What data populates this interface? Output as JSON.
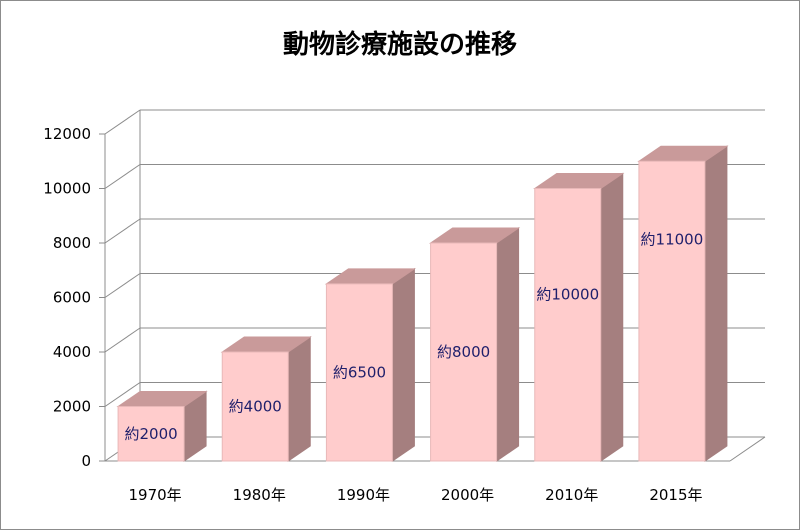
{
  "chart_data": {
    "type": "bar",
    "title": "動物診療施設の推移",
    "categories": [
      "1970年",
      "1980年",
      "1990年",
      "2000年",
      "2010年",
      "2015年"
    ],
    "values": [
      2000,
      4000,
      6500,
      8000,
      10000,
      11000
    ],
    "data_labels": [
      "約2000",
      "約4000",
      "約6500",
      "約8000",
      "約10000",
      "約11000"
    ],
    "ylim": [
      0,
      12000
    ],
    "yticks": [
      0,
      2000,
      4000,
      6000,
      8000,
      10000,
      12000
    ],
    "xlabel": "",
    "ylabel": "",
    "grid": true,
    "style": "3d-column"
  },
  "colors": {
    "bar_front": "#ffcccc",
    "bar_top": "#c99a9a",
    "bar_side": "#a57f7f",
    "gridline": "#8c8c8c",
    "label_text": "#1f1f6b"
  }
}
